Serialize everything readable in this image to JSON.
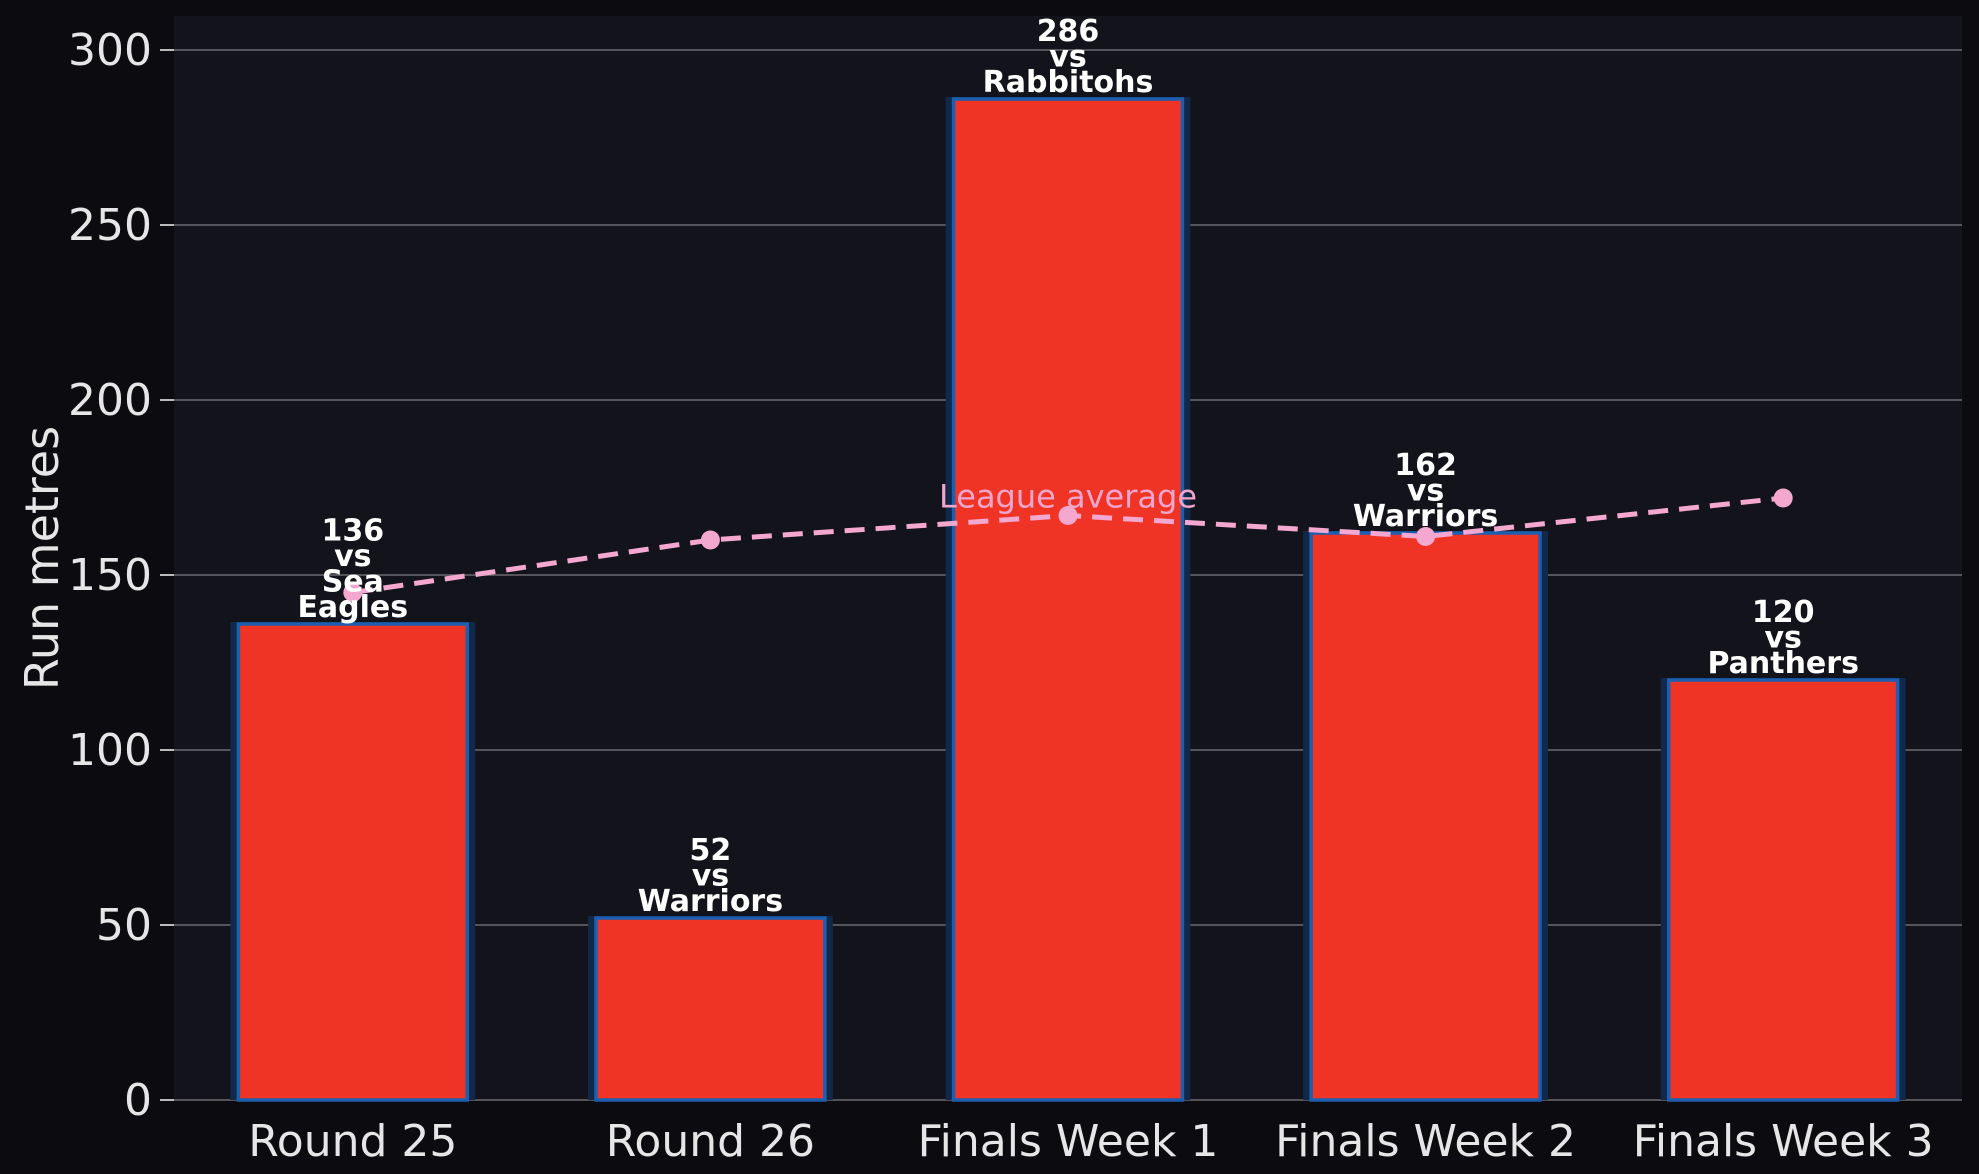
{
  "chart_data": {
    "type": "bar",
    "categories": [
      "Round 25",
      "Round 26",
      "Finals Week 1",
      "Finals Week 2",
      "Finals Week 3"
    ],
    "values": [
      136,
      52,
      286,
      162,
      120
    ],
    "bar_labels": [
      [
        "136",
        "vs",
        "Sea",
        "Eagles"
      ],
      [
        "52",
        "vs",
        "Warriors"
      ],
      [
        "286",
        "vs",
        "Rabbitohs"
      ],
      [
        "162",
        "vs",
        "Warriors"
      ],
      [
        "120",
        "vs",
        "Panthers"
      ]
    ],
    "line_series": {
      "name": "League average",
      "values": [
        145,
        160,
        167,
        161,
        172
      ]
    },
    "ylabel": "Run metres",
    "xlabel": "",
    "ylim": [
      0,
      300
    ],
    "yticks": [
      0,
      50,
      100,
      150,
      200,
      250,
      300
    ],
    "grid": "horizontal",
    "colors": {
      "background": "#0c0c10",
      "plot_background": "#13131b",
      "bar_fill": "#ef3426",
      "bar_edge": "#1c5fb0",
      "bar_glow": "#10294a",
      "line": "#f4a7cf",
      "grid": "#6b6b6f",
      "text": "#e6e6e6"
    }
  }
}
